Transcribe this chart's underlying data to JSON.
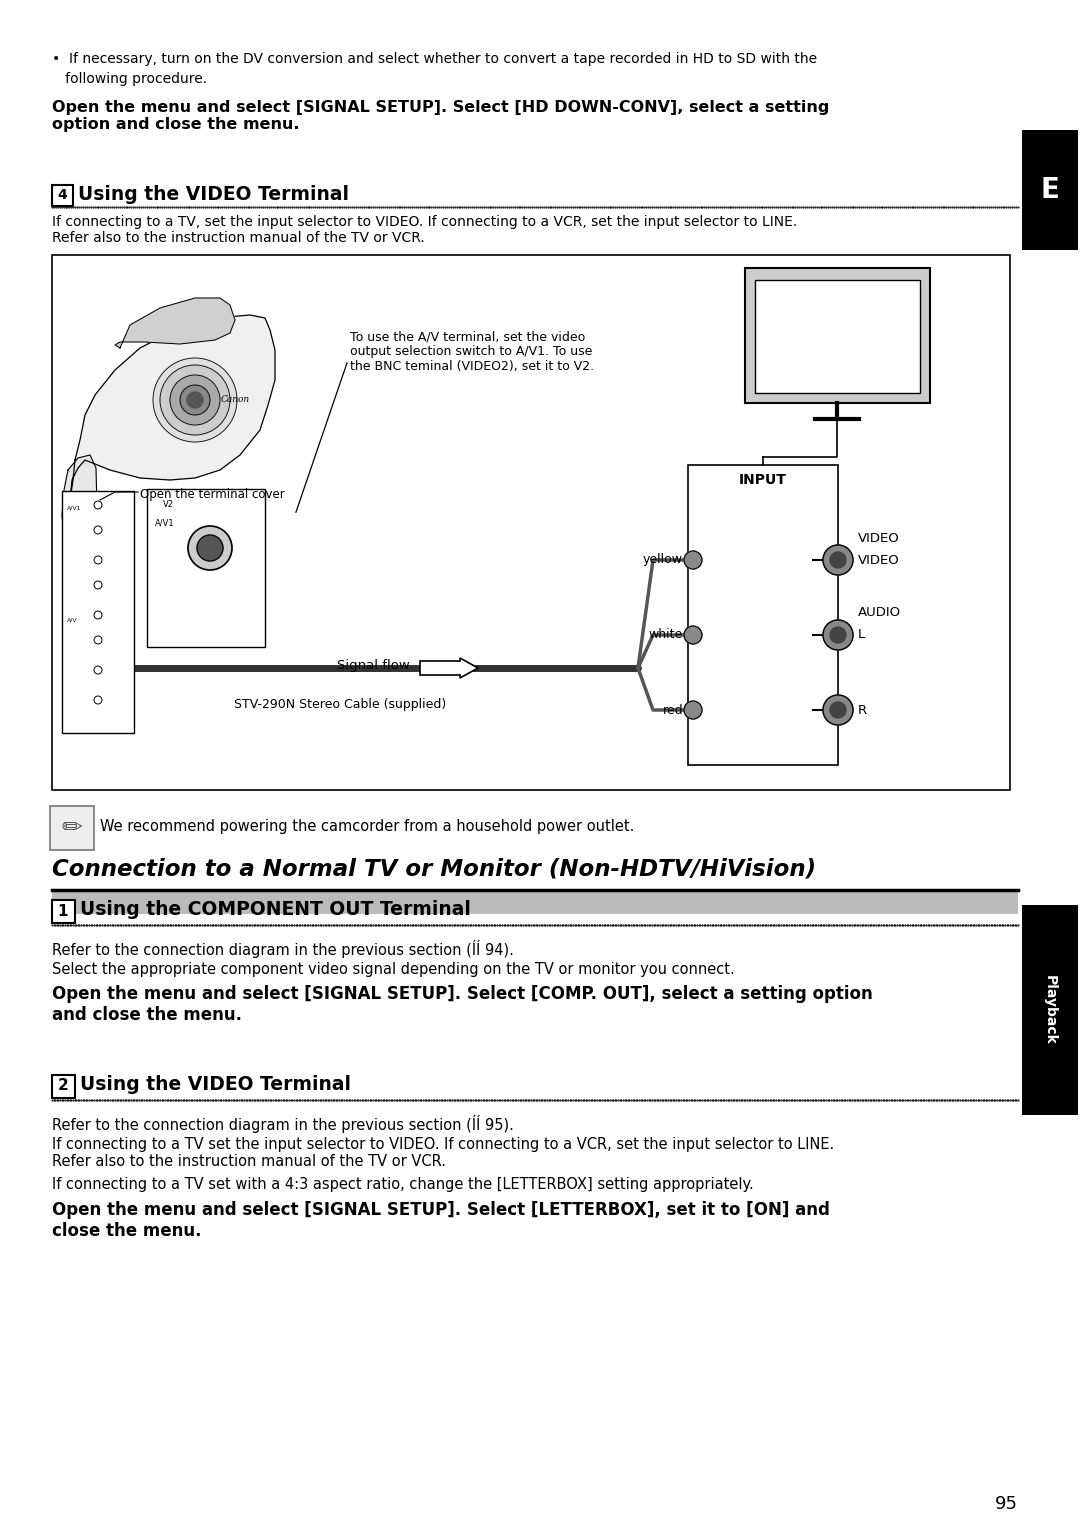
{
  "page_bg": "#ffffff",
  "page_number": "95",
  "bullet_line1": "•  If necessary, turn on the DV conversion and select whether to convert a tape recorded in HD to SD with the",
  "bullet_line2": "   following procedure.",
  "bold_text1": "Open the menu and select [SIGNAL SETUP]. Select [HD DOWN-CONV], select a setting\noption and close the menu.",
  "section4_num": "4",
  "section4_heading": "Using the VIDEO Terminal",
  "section4_body": "If connecting to a TV, set the input selector to VIDEO. If connecting to a VCR, set the input selector to LINE.\nRefer also to the instruction manual of the TV or VCR.",
  "diag_annotation": "To use the A/V terminal, set the video\noutput selection switch to A/V1. To use\nthe BNC teminal (VIDEO2), set it to V2.",
  "diag_open_cover": "Open the terminal cover",
  "diag_signal_flow": "Signal flow",
  "diag_cable": "STV-290N Stereo Cable (supplied)",
  "diag_input": "INPUT",
  "diag_yellow": "yellow",
  "diag_white": "white",
  "diag_red": "red",
  "diag_video": "VIDEO",
  "diag_audio": "AUDIO",
  "diag_L": "L",
  "diag_R": "R",
  "diag_av1": "A/V1",
  "diag_v2": "V2",
  "note_text": "We recommend powering the camcorder from a household power outlet.",
  "main_title": "Connection to a Normal TV or Monitor (Non-HDTV/HiVision)",
  "s1_num": "1",
  "s1_heading": "Using the COMPONENT OUT Terminal",
  "s1_body1": "Refer to the connection diagram in the previous section (ÍÍ 94).",
  "s1_body2": "Select the appropriate component video signal depending on the TV or monitor you connect.",
  "s1_bold": "Open the menu and select [SIGNAL SETUP]. Select [COMP. OUT], select a setting option\nand close the menu.",
  "s2_num": "2",
  "s2_heading": "Using the VIDEO Terminal",
  "s2_body1": "Refer to the connection diagram in the previous section (ÍÍ 95).",
  "s2_body2": "If connecting to a TV set the input selector to VIDEO. If connecting to a VCR, set the input selector to LINE.\nRefer also to the instruction manual of the TV or VCR.",
  "s2_body3": "If connecting to a TV set with a 4:3 aspect ratio, change the [LETTERBOX] setting appropriately.",
  "s2_bold": "Open the menu and select [SIGNAL SETUP]. Select [LETTERBOX], set it to [ON] and\nclose the menu.",
  "sidebar_E": "E",
  "sidebar_playback": "Playback"
}
